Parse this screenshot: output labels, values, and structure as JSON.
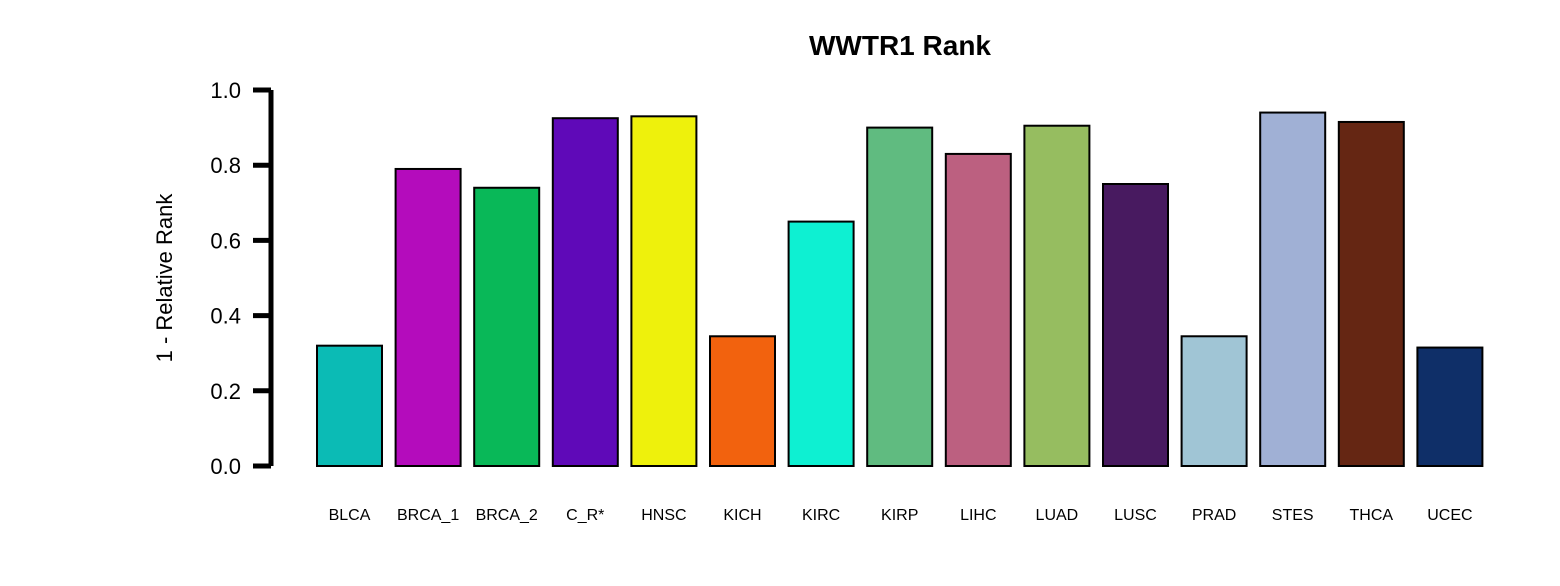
{
  "chart_data": {
    "type": "bar",
    "title": "WWTR1 Rank",
    "xlabel": "",
    "ylabel": "1 - Relative Rank",
    "ylim": [
      0,
      1.0
    ],
    "yticks": [
      "0.0",
      "0.2",
      "0.4",
      "0.6",
      "0.8",
      "1.0"
    ],
    "ytick_values": [
      0,
      0.2,
      0.4,
      0.6,
      0.8,
      1.0
    ],
    "grid": false,
    "legend": "none",
    "categories": [
      "BLCA",
      "BRCA_1",
      "BRCA_2",
      "C_R*",
      "HNSC",
      "KICH",
      "KIRC",
      "KIRP",
      "LIHC",
      "LUAD",
      "LUSC",
      "PRAD",
      "STES",
      "THCA",
      "UCEC"
    ],
    "values": [
      0.32,
      0.79,
      0.74,
      0.925,
      0.93,
      0.345,
      0.65,
      0.9,
      0.83,
      0.905,
      0.75,
      0.345,
      0.94,
      0.915,
      0.315
    ],
    "colors": [
      "#0bbbb5",
      "#b40cbc",
      "#09b858",
      "#5f09b8",
      "#eef10c",
      "#f2620e",
      "#0ef0d2",
      "#60bb80",
      "#bc6080",
      "#96bd60",
      "#481a60",
      "#a0c5d5",
      "#a0b0d5",
      "#652613",
      "#0f2f68"
    ]
  }
}
